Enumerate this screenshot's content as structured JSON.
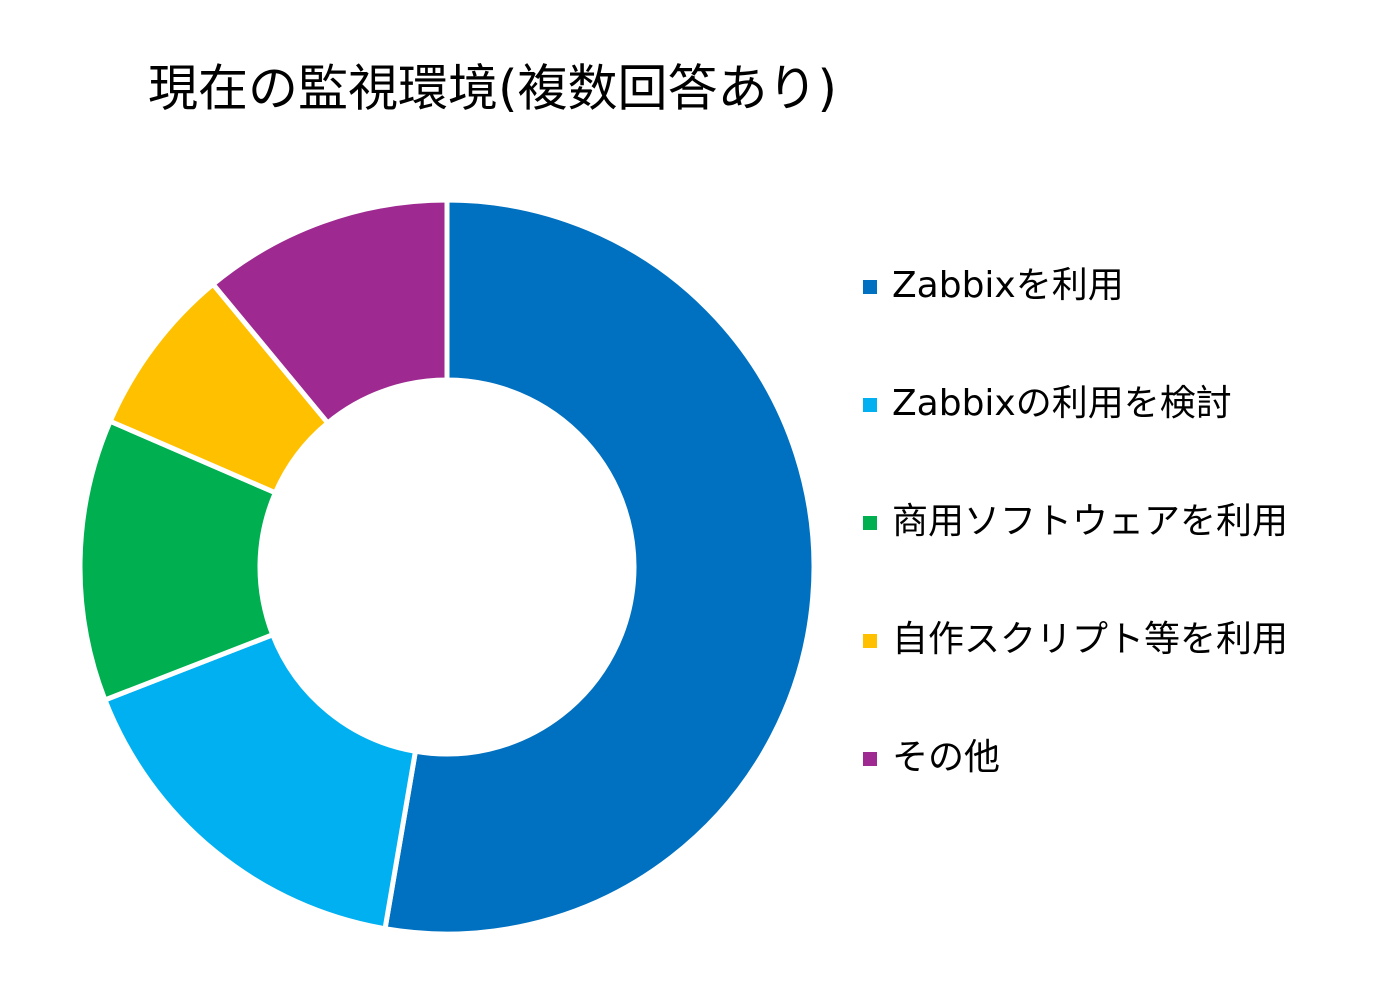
{
  "chart_data": {
    "type": "donut",
    "title": "現在の監視環境(複数回答あり)",
    "categories": [
      "Zabbixを利用",
      "Zabbixの利用を検討",
      "商用ソフトウェアを利用",
      "自作スクリプト等を利用",
      "その他"
    ],
    "values": [
      52.7,
      16.4,
      12.4,
      7.5,
      11.0
    ],
    "colors": [
      "#0070c0",
      "#00b0f0",
      "#00b050",
      "#ffc000",
      "#9e2a91"
    ],
    "legend": "right"
  }
}
